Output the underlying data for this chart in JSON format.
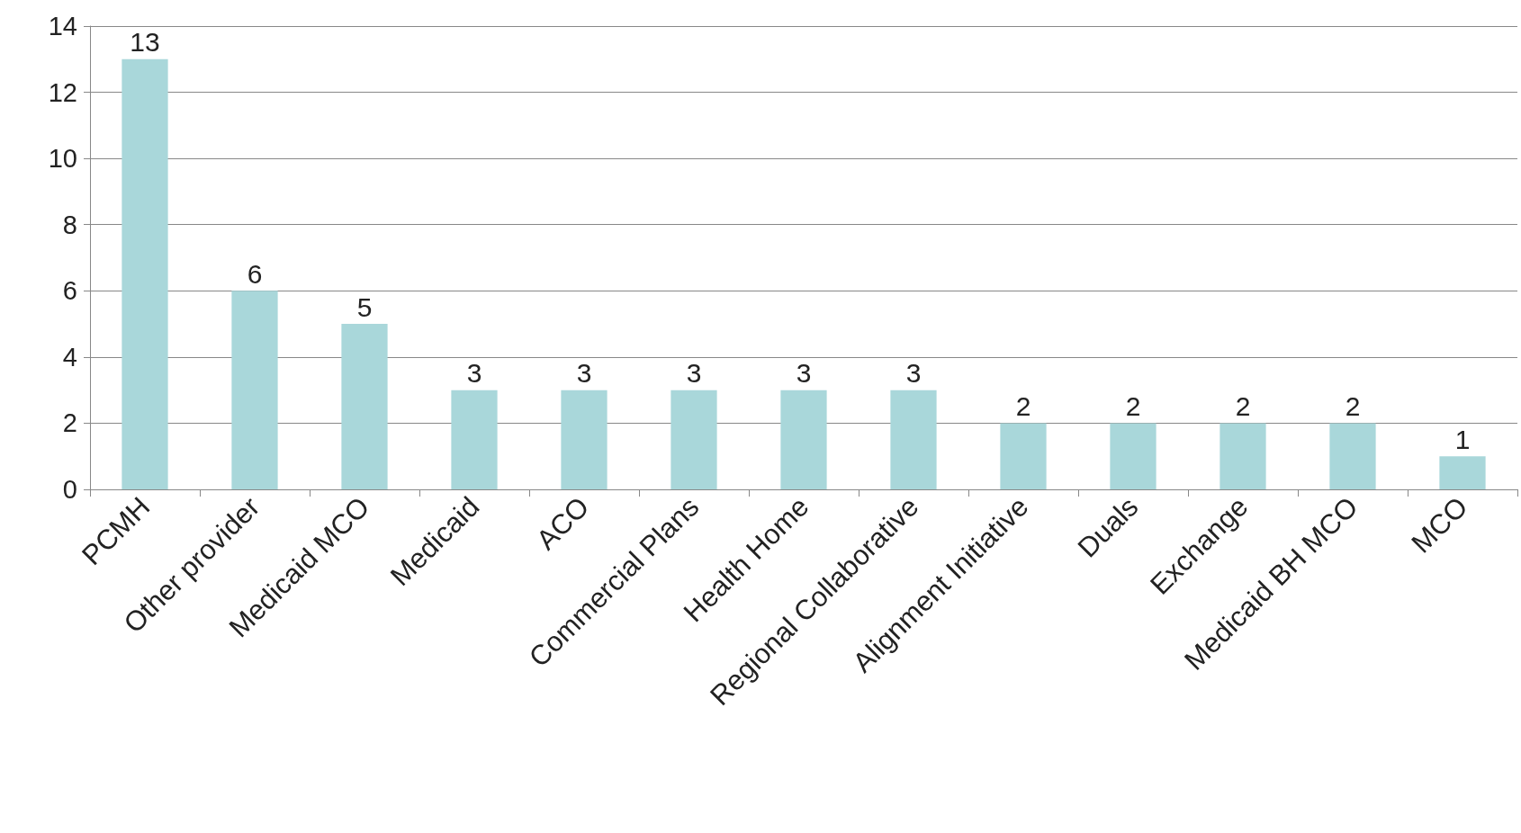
{
  "chart_data": {
    "type": "bar",
    "categories": [
      "PCMH",
      "Other provider",
      "Medicaid MCO",
      "Medicaid",
      "ACO",
      "Commercial Plans",
      "Health Home",
      "Regional Collaborative",
      "Alignment Initiative",
      "Duals",
      "Exchange",
      "Medicaid BH MCO",
      "MCO"
    ],
    "values": [
      13,
      6,
      5,
      3,
      3,
      3,
      3,
      3,
      2,
      2,
      2,
      2,
      1
    ],
    "color": "#a9d7da",
    "ylim": [
      0,
      14
    ],
    "yticks": [
      0,
      2,
      4,
      6,
      8,
      10,
      12,
      14
    ],
    "grid": "y",
    "data_labels": true
  }
}
